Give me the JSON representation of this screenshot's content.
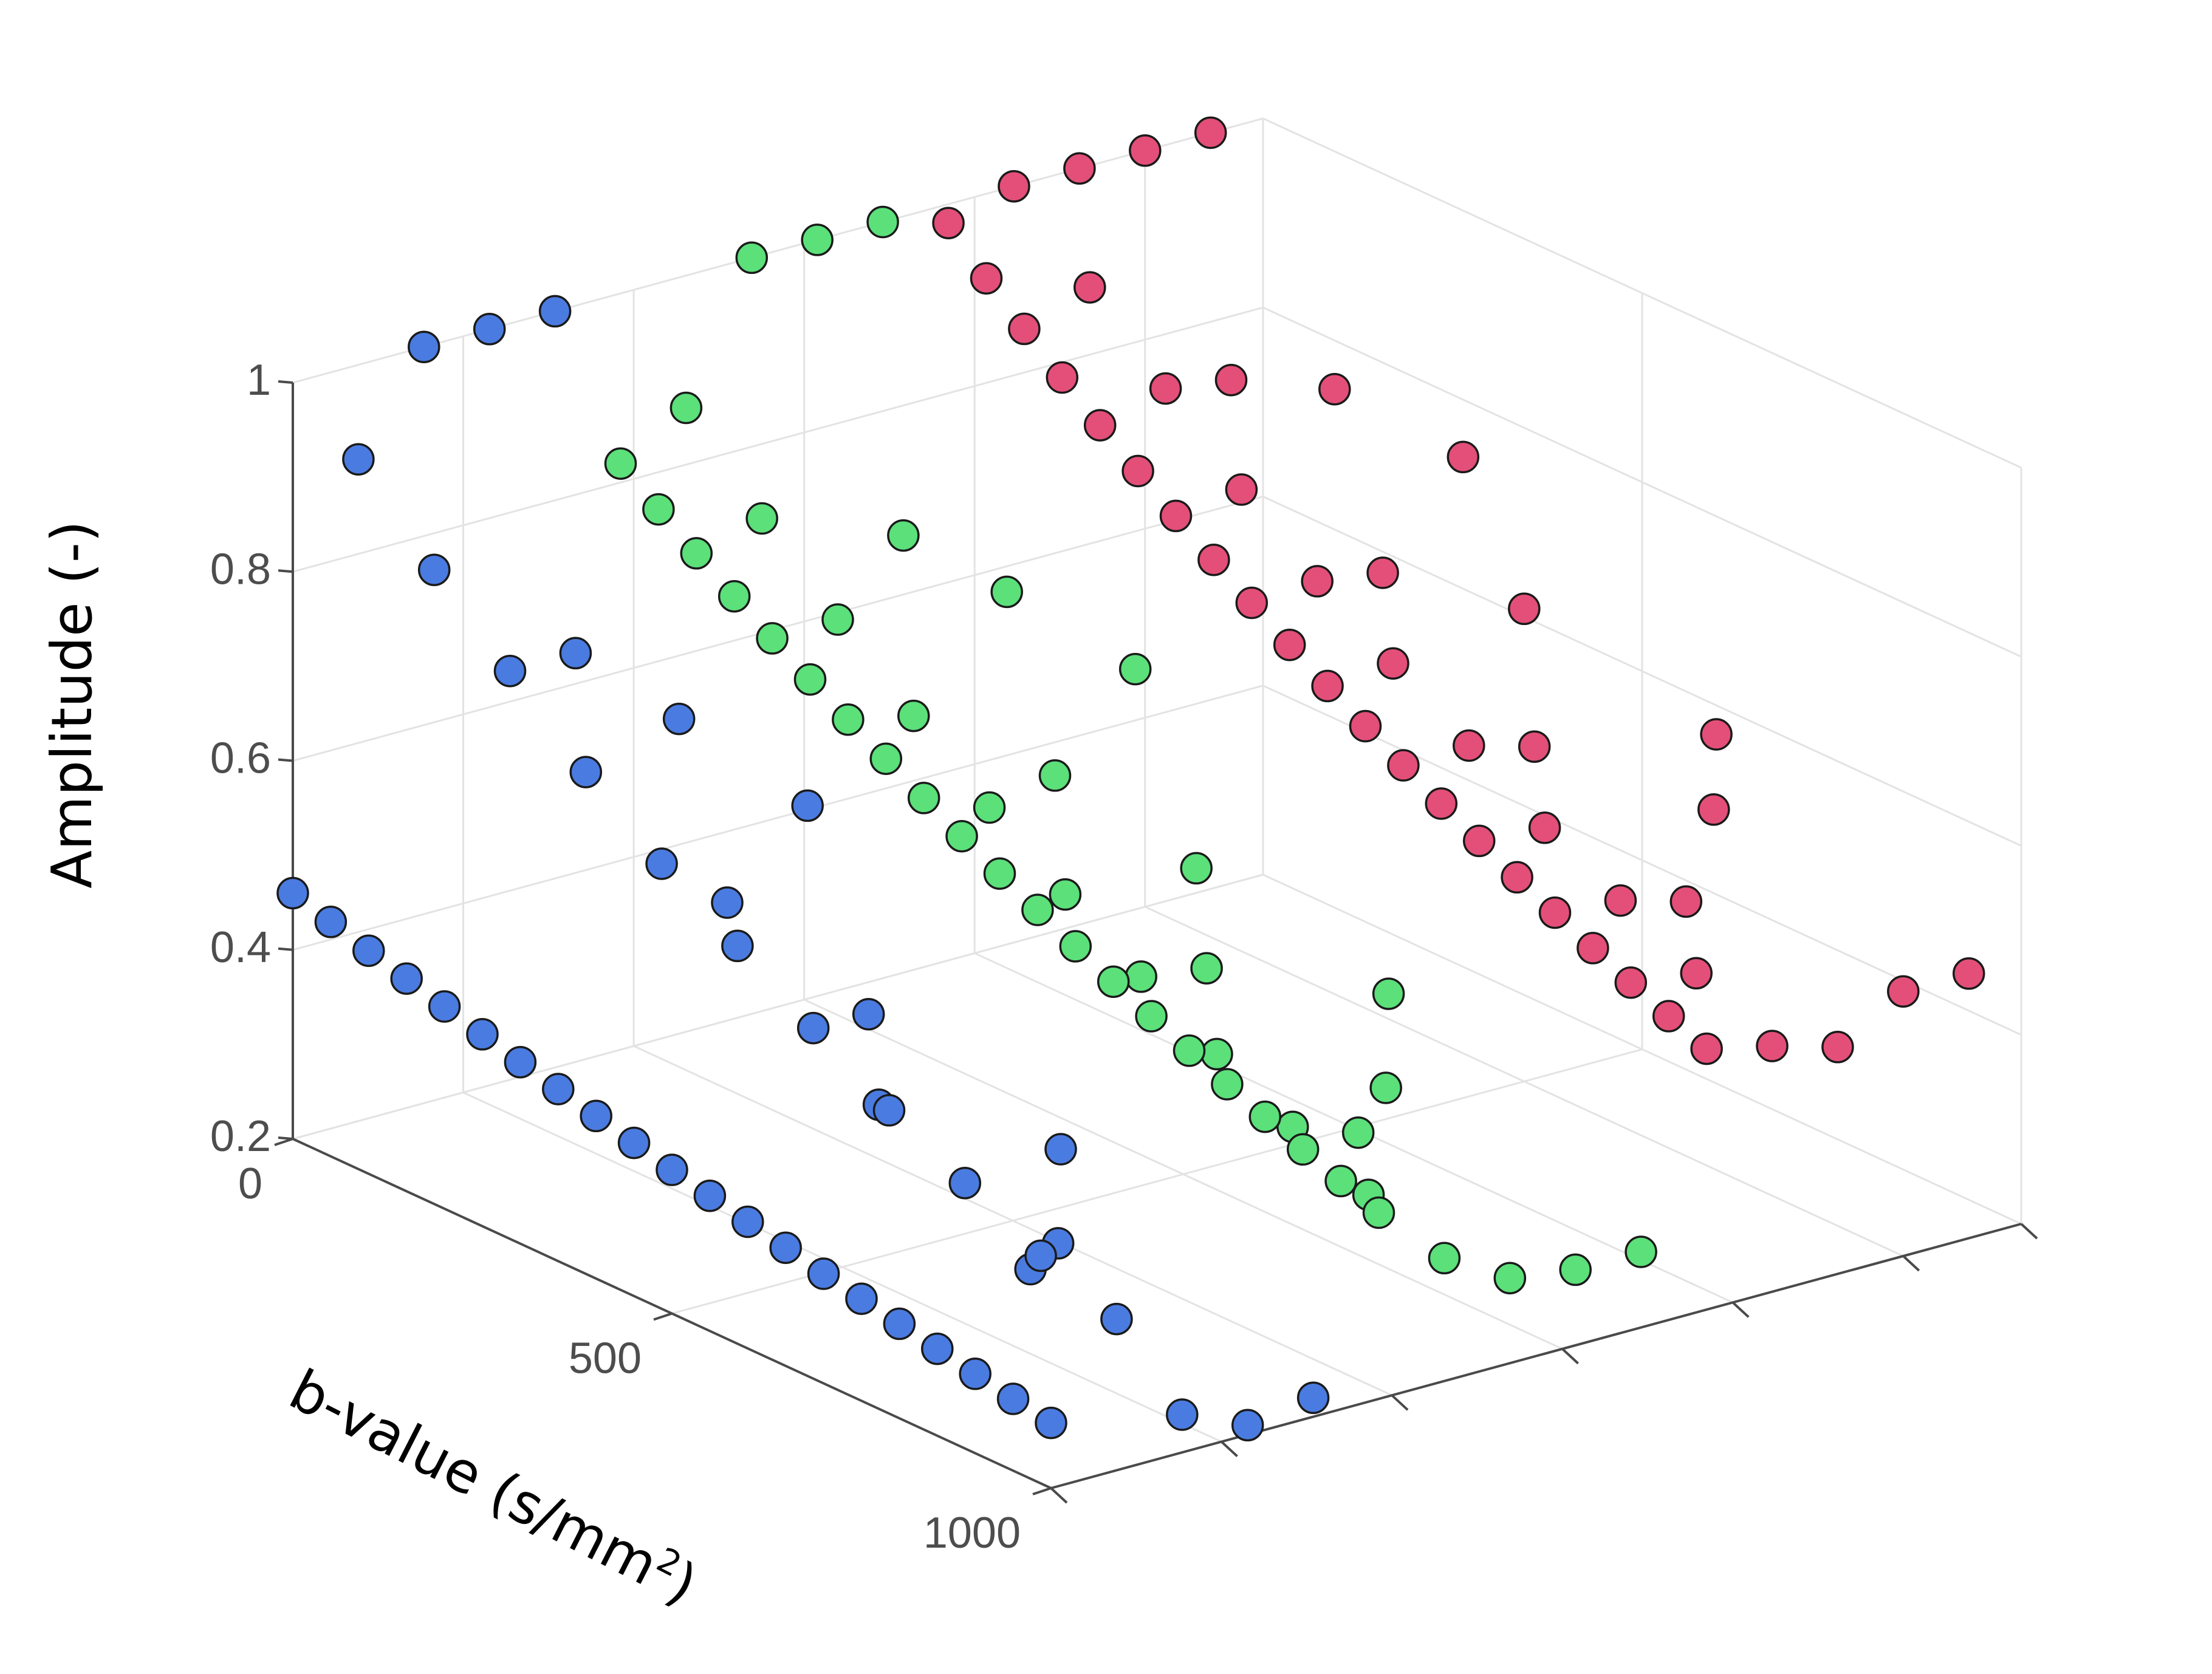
{
  "chart_data": {
    "type": "scatter",
    "view": "3d",
    "xlabel": "",
    "ylabel_prefix": "b-value (s/mm",
    "ylabel_sup": "2",
    "ylabel_suffix": ")",
    "zlabel": "Amplitude (-)",
    "z_ticks": [
      "0.2",
      "0.4",
      "0.6",
      "0.8",
      "1"
    ],
    "b_ticks": [
      "0",
      "500",
      "1000"
    ],
    "zlim": [
      0.2,
      1.0
    ],
    "blim": [
      0,
      1000
    ],
    "grid": true,
    "colors": {
      "blue": "#4a7be0",
      "green": "#5be07a",
      "red": "#e34f78"
    },
    "series": [
      {
        "color": "#4a7be0",
        "slot": 0,
        "b": [
          0,
          50,
          100,
          150,
          200,
          250,
          300,
          350,
          400,
          450,
          500,
          550,
          600,
          650,
          700,
          750,
          800,
          850,
          900,
          950,
          1000
        ],
        "amplitude": [
          0.46,
          0.448,
          0.436,
          0.425,
          0.414,
          0.403,
          0.392,
          0.382,
          0.372,
          0.362,
          0.352,
          0.343,
          0.334,
          0.325,
          0.316,
          0.308,
          0.3,
          0.292,
          0.284,
          0.276,
          0.269
        ]
      },
      {
        "color": "#4a7be0",
        "slot": 0.5,
        "b": [
          0,
          100,
          200,
          300,
          400,
          500,
          600,
          700,
          800,
          900,
          1000
        ],
        "amplitude": [
          0.9,
          0.82,
          0.75,
          0.68,
          0.62,
          0.57,
          0.52,
          0.47,
          0.43,
          0.39,
          0.36
        ]
      },
      {
        "color": "#4a7be0",
        "slot": 1,
        "b": [
          0,
          200,
          400,
          600,
          800,
          1000
        ],
        "amplitude": [
          1.0,
          0.75,
          0.56,
          0.42,
          0.32,
          0.24
        ]
      },
      {
        "color": "#4a7be0",
        "slot": 1.5,
        "b": [
          0,
          250,
          500,
          750,
          1000
        ],
        "amplitude": [
          1.0,
          0.68,
          0.46,
          0.31,
          0.21
        ]
      },
      {
        "color": "#4a7be0",
        "slot": 2,
        "b": [
          0,
          333,
          667,
          1000
        ],
        "amplitude": [
          1.0,
          0.6,
          0.36,
          0.22
        ]
      },
      {
        "color": "#5be07a",
        "slot": 2.5,
        "b": [
          0,
          50,
          100,
          150,
          200,
          250,
          300,
          350,
          400,
          450,
          500,
          550,
          600,
          650,
          700,
          750,
          800,
          850,
          900,
          950,
          1000
        ],
        "amplitude": [
          0.82,
          0.79,
          0.762,
          0.735,
          0.709,
          0.684,
          0.66,
          0.637,
          0.614,
          0.592,
          0.571,
          0.551,
          0.531,
          0.512,
          0.494,
          0.476,
          0.459,
          0.443,
          0.427,
          0.412,
          0.397
        ]
      },
      {
        "color": "#5be07a",
        "slot": 3,
        "b": [
          0,
          100,
          200,
          300,
          400,
          500,
          600,
          700,
          800,
          900,
          1000
        ],
        "amplitude": [
          0.86,
          0.78,
          0.71,
          0.645,
          0.585,
          0.53,
          0.48,
          0.435,
          0.395,
          0.36,
          0.33
        ]
      },
      {
        "color": "#5be07a",
        "slot": 3.5,
        "b": [
          0,
          200,
          400,
          600,
          800,
          1000
        ],
        "amplitude": [
          1.0,
          0.78,
          0.6,
          0.47,
          0.37,
          0.29
        ]
      },
      {
        "color": "#5be07a",
        "slot": 4,
        "b": [
          0,
          250,
          500,
          750,
          1000
        ],
        "amplitude": [
          1.0,
          0.72,
          0.52,
          0.38,
          0.28
        ]
      },
      {
        "color": "#5be07a",
        "slot": 4.5,
        "b": [
          0,
          333,
          667,
          1000
        ],
        "amplitude": [
          1.0,
          0.65,
          0.43,
          0.28
        ]
      },
      {
        "color": "#e34f78",
        "slot": 5,
        "b": [
          0,
          50,
          100,
          150,
          200,
          250,
          300,
          350,
          400,
          450,
          500,
          550,
          600,
          650,
          700,
          750,
          800,
          850,
          900,
          950,
          1000
        ],
        "amplitude": [
          0.98,
          0.94,
          0.905,
          0.872,
          0.84,
          0.81,
          0.781,
          0.753,
          0.726,
          0.7,
          0.675,
          0.651,
          0.628,
          0.606,
          0.585,
          0.565,
          0.546,
          0.527,
          0.509,
          0.492,
          0.476
        ]
      },
      {
        "color": "#e34f78",
        "slot": 5.5,
        "b": [
          0,
          100,
          200,
          300,
          400,
          500,
          600,
          700,
          800,
          900,
          1000
        ],
        "amplitude": [
          1.0,
          0.93,
          0.86,
          0.79,
          0.73,
          0.68,
          0.63,
          0.58,
          0.54,
          0.5,
          0.46
        ]
      },
      {
        "color": "#e34f78",
        "slot": 6,
        "b": [
          0,
          200,
          400,
          600,
          800,
          1000
        ],
        "amplitude": [
          1.0,
          0.85,
          0.72,
          0.61,
          0.52,
          0.44
        ]
      },
      {
        "color": "#e34f78",
        "slot": 6.5,
        "b": [
          0,
          250,
          500,
          750,
          1000
        ],
        "amplitude": [
          1.0,
          0.84,
          0.7,
          0.58,
          0.48
        ]
      },
      {
        "color": "#e34f78",
        "slot": 7,
        "b": [
          0,
          333,
          667,
          1000
        ],
        "amplitude": [
          1.0,
          0.78,
          0.61,
          0.48
        ]
      }
    ]
  }
}
